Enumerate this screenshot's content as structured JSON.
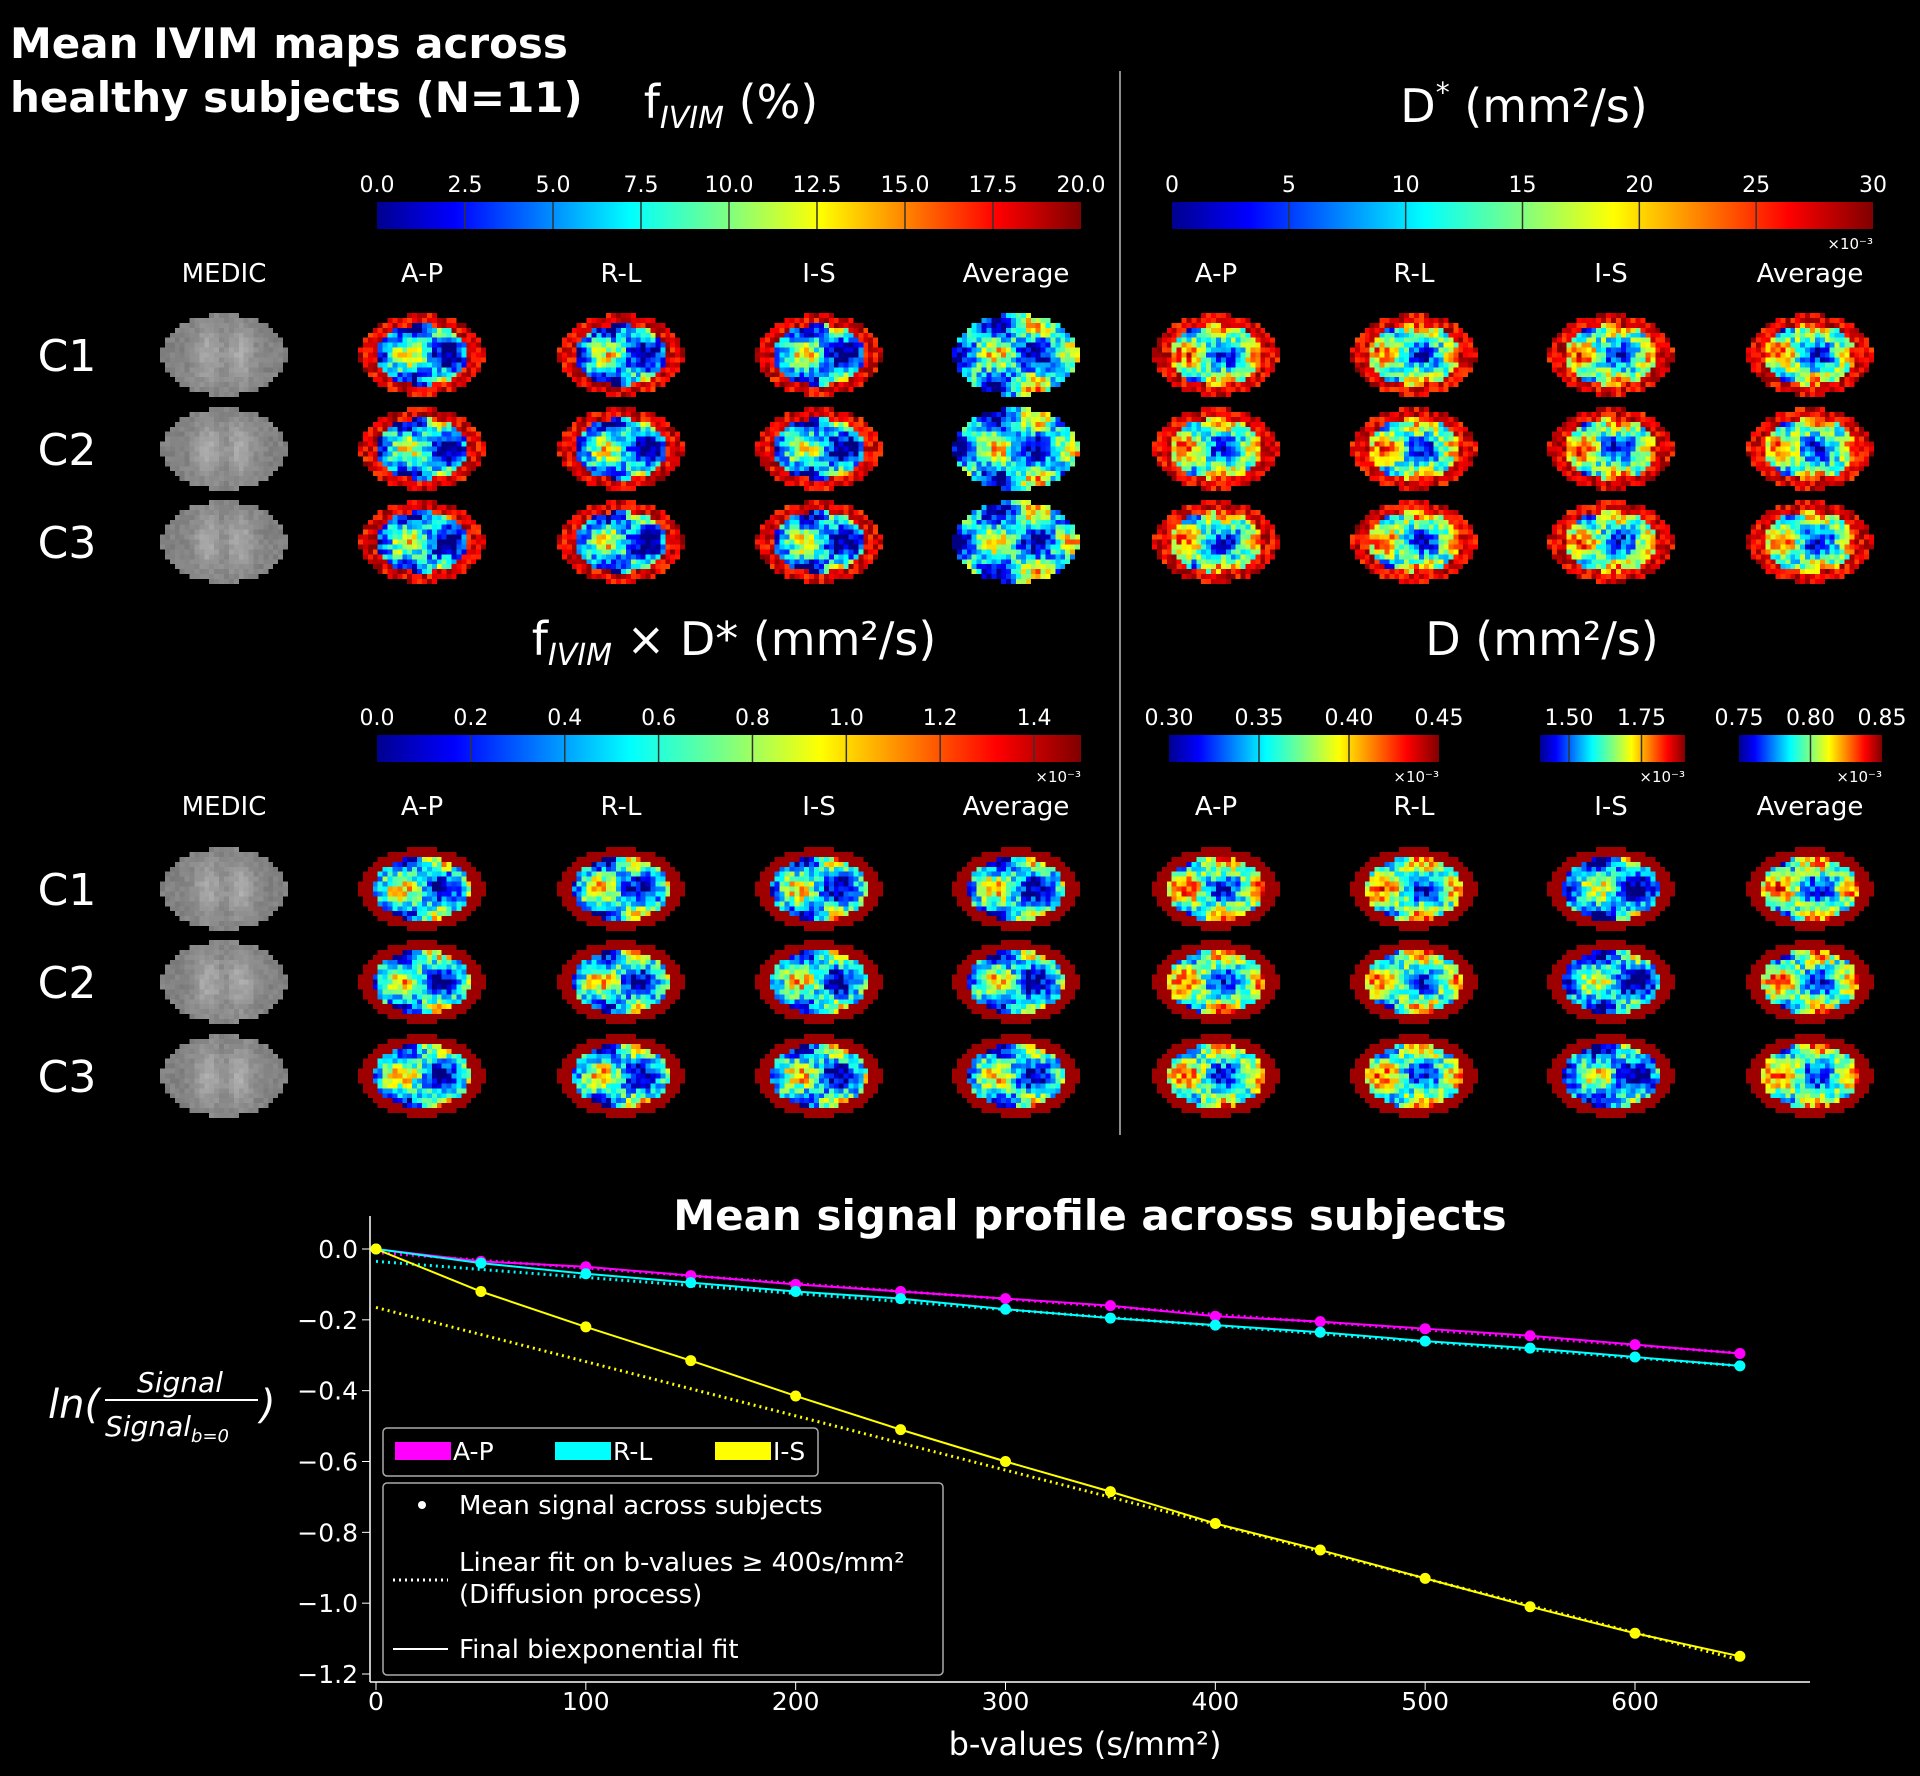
{
  "figure_title": [
    "Mean IVIM maps across",
    "healthy subjects (N=11)"
  ],
  "panels": [
    {
      "title_main": "f",
      "title_sub": "IVIM",
      "title_rest": " (%)",
      "colorbars": [
        {
          "range": [
            0,
            20
          ],
          "ticks": [
            "0.0",
            "2.5",
            "5.0",
            "7.5",
            "10.0",
            "12.5",
            "15.0",
            "17.5",
            "20.0"
          ],
          "tick_values": [
            0,
            2.5,
            5,
            7.5,
            10,
            12.5,
            15,
            17.5,
            20
          ],
          "multiplier": ""
        }
      ],
      "columns": [
        "MEDIC",
        "A-P",
        "R-L",
        "I-S",
        "Average"
      ],
      "rows": [
        "C1",
        "C2",
        "C3"
      ]
    },
    {
      "title_main": "D",
      "title_sup": "*",
      "title_rest": "  (mm²/s)",
      "colorbars": [
        {
          "range": [
            0,
            30
          ],
          "ticks": [
            "0",
            "5",
            "10",
            "15",
            "20",
            "25",
            "30"
          ],
          "tick_values": [
            0,
            5,
            10,
            15,
            20,
            25,
            30
          ],
          "multiplier": "×10⁻³"
        }
      ],
      "columns": [
        "A-P",
        "R-L",
        "I-S",
        "Average"
      ]
    },
    {
      "title_main": "f",
      "title_sub": "IVIM",
      "title_rest": " × D* (mm²/s)",
      "colorbars": [
        {
          "range": [
            0,
            1.5
          ],
          "ticks": [
            "0.0",
            "0.2",
            "0.4",
            "0.6",
            "0.8",
            "1.0",
            "1.2",
            "1.4"
          ],
          "tick_values": [
            0,
            0.2,
            0.4,
            0.6,
            0.8,
            1.0,
            1.2,
            1.4
          ],
          "multiplier": "×10⁻³"
        }
      ],
      "columns": [
        "MEDIC",
        "A-P",
        "R-L",
        "I-S",
        "Average"
      ],
      "rows": [
        "C1",
        "C2",
        "C3"
      ]
    },
    {
      "title_main": "D",
      "title_rest": " (mm²/s)",
      "colorbars": [
        {
          "range": [
            0.3,
            0.45
          ],
          "ticks": [
            "0.30",
            "0.35",
            "0.40",
            "0.45"
          ],
          "tick_values": [
            0.3,
            0.35,
            0.4,
            0.45
          ],
          "multiplier": "×10⁻³"
        },
        {
          "range": [
            1.4,
            1.9
          ],
          "ticks": [
            "1.50",
            "1.75"
          ],
          "tick_values": [
            1.5,
            1.75
          ],
          "multiplier": "×10⁻³"
        },
        {
          "range": [
            0.75,
            0.85
          ],
          "ticks": [
            "0.75",
            "0.80",
            "0.85"
          ],
          "tick_values": [
            0.75,
            0.8,
            0.85
          ],
          "multiplier": "×10⁻³"
        }
      ],
      "columns": [
        "A-P",
        "R-L",
        "I-S",
        "Average"
      ]
    }
  ],
  "colormap": "jet",
  "chart_data": {
    "type": "line",
    "title": "Mean signal profile across subjects",
    "xlabel": "b-values (s/mm²)",
    "ylabel": "ln(Signal / Signal_b=0)",
    "ylabel_num": "Signal",
    "ylabel_den": "Signal",
    "ylabel_den_sub": "b=0",
    "xlim": [
      -5,
      685
    ],
    "ylim": [
      -1.22,
      0.09
    ],
    "xticks": [
      0,
      100,
      200,
      300,
      400,
      500,
      600
    ],
    "yticks": [
      0.0,
      -0.2,
      -0.4,
      -0.6,
      -0.8,
      -1.0,
      -1.2
    ],
    "ytick_labels": [
      "0.0",
      "−0.2",
      "−0.4",
      "−0.6",
      "−0.8",
      "−1.0",
      "−1.2"
    ],
    "x": [
      0,
      50,
      100,
      150,
      200,
      250,
      300,
      350,
      400,
      450,
      500,
      550,
      600,
      650
    ],
    "series": [
      {
        "name": "A-P",
        "color": "#ff00ff",
        "values": [
          0,
          -0.035,
          -0.05,
          -0.075,
          -0.1,
          -0.12,
          -0.14,
          -0.16,
          -0.19,
          -0.205,
          -0.225,
          -0.245,
          -0.27,
          -0.295
        ],
        "linear_fit": [
          -0.01,
          -0.294
        ]
      },
      {
        "name": "R-L",
        "color": "#00ffff",
        "values": [
          0,
          -0.04,
          -0.07,
          -0.095,
          -0.12,
          -0.14,
          -0.17,
          -0.195,
          -0.215,
          -0.235,
          -0.26,
          -0.28,
          -0.305,
          -0.33
        ],
        "linear_fit": [
          -0.035,
          -0.33
        ]
      },
      {
        "name": "I-S",
        "color": "#ffff00",
        "values": [
          0,
          -0.12,
          -0.22,
          -0.315,
          -0.415,
          -0.51,
          -0.6,
          -0.685,
          -0.775,
          -0.85,
          -0.93,
          -1.01,
          -1.085,
          -1.15
        ],
        "linear_fit": [
          -0.165,
          -1.16
        ]
      }
    ],
    "legend_series": [
      "A-P",
      "R-L",
      "I-S"
    ],
    "legend_styles": [
      "Mean signal across subjects",
      "Linear fit on b-values ≥ 400s/mm²",
      "(Diffusion process)",
      "Final biexponential fit"
    ],
    "legend": "left",
    "grid": false
  }
}
